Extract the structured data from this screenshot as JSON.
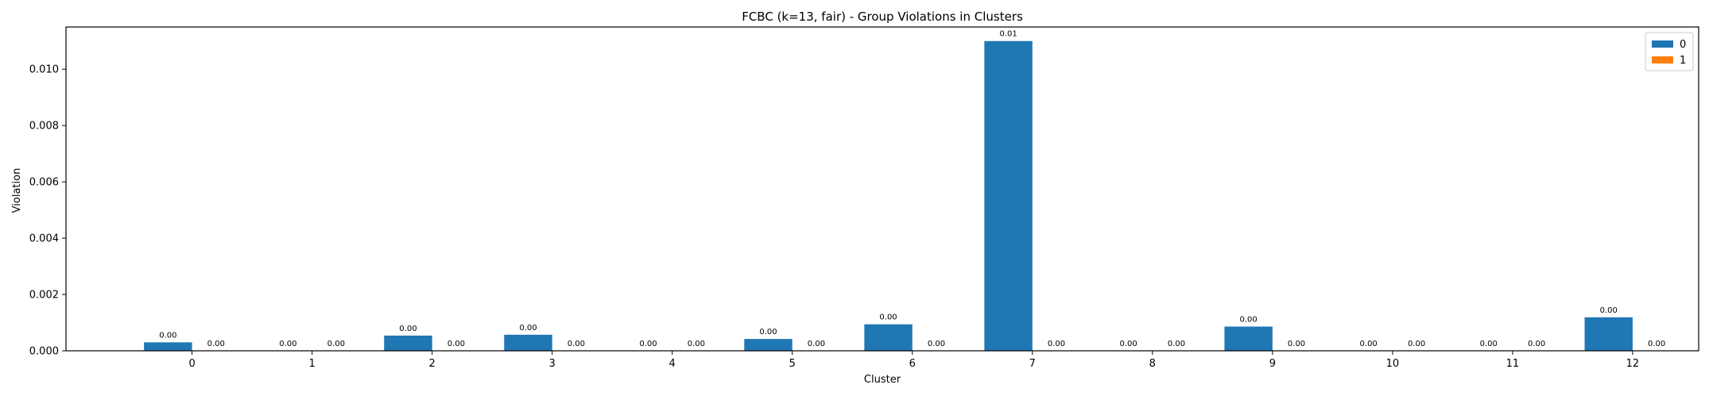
{
  "chart_data": {
    "type": "bar",
    "title": "FCBC (k=13, fair) - Group Violations in Clusters",
    "xlabel": "Cluster",
    "ylabel": "Violation",
    "categories": [
      "0",
      "1",
      "2",
      "3",
      "4",
      "5",
      "6",
      "7",
      "8",
      "9",
      "10",
      "11",
      "12"
    ],
    "series": [
      {
        "name": "0",
        "color": "#1f77b4",
        "values": [
          0.0003,
          0.0,
          0.00054,
          0.00057,
          0.0,
          0.00042,
          0.00094,
          0.011,
          0.0,
          0.00086,
          0.0,
          0.0,
          0.00119
        ],
        "labels": [
          "0.00",
          "0.00",
          "0.00",
          "0.00",
          "0.00",
          "0.00",
          "0.00",
          "0.01",
          "0.00",
          "0.00",
          "0.00",
          "0.00",
          "0.00"
        ]
      },
      {
        "name": "1",
        "color": "#ff7f0e",
        "values": [
          0.0,
          0.0,
          0.0,
          0.0,
          0.0,
          0.0,
          0.0,
          0.0,
          0.0,
          0.0,
          0.0,
          0.0,
          0.0
        ],
        "labels": [
          "0.00",
          "0.00",
          "0.00",
          "0.00",
          "0.00",
          "0.00",
          "0.00",
          "0.00",
          "0.00",
          "0.00",
          "0.00",
          "0.00",
          "0.00"
        ]
      }
    ],
    "ylim": [
      0,
      0.0115
    ],
    "yticks": [
      0.0,
      0.002,
      0.004,
      0.006,
      0.008,
      0.01
    ],
    "ytick_labels": [
      "0.000",
      "0.002",
      "0.004",
      "0.006",
      "0.008",
      "0.010"
    ],
    "grid": false,
    "legend_position": "top-right"
  }
}
